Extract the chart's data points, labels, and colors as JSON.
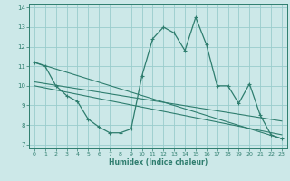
{
  "xlabel": "Humidex (Indice chaleur)",
  "bg_color": "#cce8e8",
  "line_color": "#2e7d6e",
  "grid_color": "#99cccc",
  "xlim": [
    -0.5,
    23.5
  ],
  "ylim": [
    6.8,
    14.2
  ],
  "yticks": [
    7,
    8,
    9,
    10,
    11,
    12,
    13,
    14
  ],
  "xticks": [
    0,
    1,
    2,
    3,
    4,
    5,
    6,
    7,
    8,
    9,
    10,
    11,
    12,
    13,
    14,
    15,
    16,
    17,
    18,
    19,
    20,
    21,
    22,
    23
  ],
  "series1_x": [
    0,
    1,
    2,
    3,
    4,
    5,
    6,
    7,
    8,
    9,
    10,
    11,
    12,
    13,
    14,
    15,
    16,
    17,
    18,
    19,
    20,
    21,
    22,
    23
  ],
  "series1_y": [
    11.2,
    11.0,
    10.0,
    9.5,
    9.2,
    8.3,
    7.9,
    7.6,
    7.6,
    7.8,
    10.5,
    12.4,
    13.0,
    12.7,
    11.8,
    13.5,
    12.1,
    10.0,
    10.0,
    9.1,
    10.1,
    8.5,
    7.5,
    7.3
  ],
  "series2_x": [
    0,
    23
  ],
  "series2_y": [
    11.2,
    7.3
  ],
  "series3_x": [
    0,
    23
  ],
  "series3_y": [
    10.0,
    7.5
  ],
  "series4_x": [
    0,
    23
  ],
  "series4_y": [
    10.2,
    8.2
  ]
}
